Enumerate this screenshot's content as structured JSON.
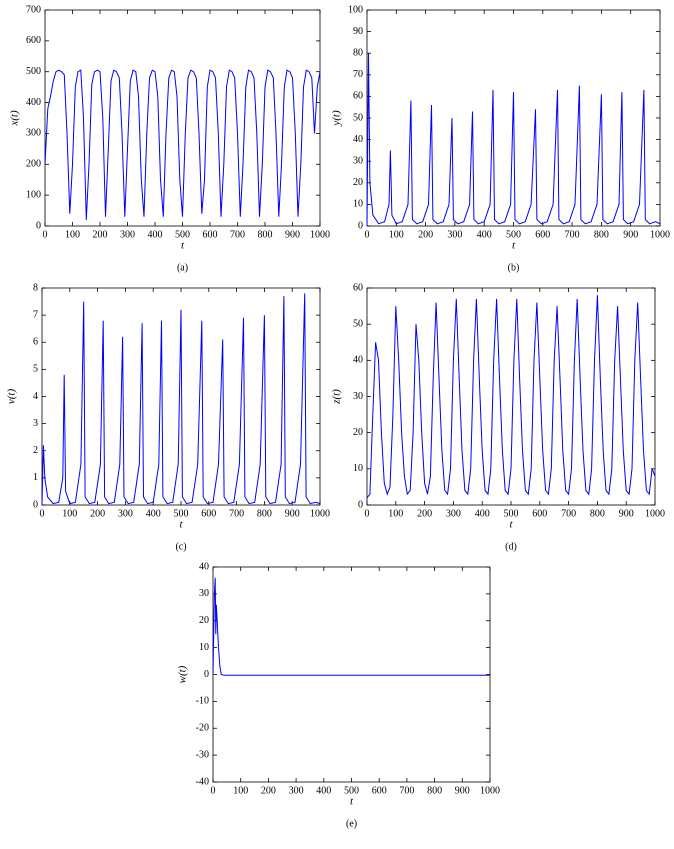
{
  "chart_data": [
    {
      "type": "line",
      "caption": "(a)",
      "x_label": "t",
      "y_label": "x(t)",
      "color": "#0000ff",
      "xlim": [
        0,
        1000
      ],
      "xticks": [
        0,
        100,
        200,
        300,
        400,
        500,
        600,
        700,
        800,
        900,
        1000
      ],
      "ylim": [
        0,
        700
      ],
      "yticks": [
        0,
        100,
        200,
        300,
        400,
        500,
        600,
        700
      ],
      "x": [
        0,
        10,
        20,
        30,
        40,
        50,
        60,
        70,
        80,
        90,
        100,
        110,
        120,
        130,
        140,
        150,
        160,
        170,
        180,
        190,
        200,
        210,
        220,
        230,
        240,
        250,
        260,
        270,
        280,
        290,
        300,
        310,
        320,
        330,
        340,
        350,
        360,
        370,
        380,
        390,
        400,
        410,
        420,
        430,
        440,
        450,
        460,
        470,
        480,
        490,
        500,
        510,
        520,
        530,
        540,
        550,
        560,
        570,
        580,
        590,
        600,
        610,
        620,
        630,
        640,
        650,
        660,
        670,
        680,
        690,
        700,
        710,
        720,
        730,
        740,
        750,
        760,
        770,
        780,
        790,
        800,
        810,
        820,
        830,
        840,
        850,
        860,
        870,
        880,
        890,
        900,
        910,
        920,
        930,
        940,
        950,
        960,
        970,
        980,
        990,
        1000
      ],
      "values": [
        200,
        380,
        420,
        470,
        500,
        505,
        500,
        490,
        300,
        40,
        200,
        450,
        500,
        505,
        350,
        20,
        200,
        460,
        500,
        505,
        500,
        350,
        30,
        250,
        470,
        505,
        500,
        480,
        300,
        30,
        250,
        470,
        505,
        500,
        420,
        150,
        30,
        300,
        480,
        505,
        500,
        420,
        150,
        30,
        300,
        480,
        505,
        500,
        420,
        150,
        30,
        300,
        480,
        505,
        500,
        480,
        300,
        40,
        150,
        450,
        505,
        500,
        480,
        300,
        30,
        200,
        450,
        505,
        500,
        480,
        300,
        30,
        200,
        450,
        505,
        500,
        480,
        300,
        30,
        200,
        450,
        505,
        500,
        480,
        300,
        30,
        200,
        450,
        505,
        500,
        480,
        300,
        30,
        200,
        450,
        505,
        500,
        480,
        300,
        450,
        500
      ]
    },
    {
      "type": "line",
      "caption": "(b)",
      "x_label": "t",
      "y_label": "y(t)",
      "color": "#0000ff",
      "xlim": [
        0,
        1000
      ],
      "xticks": [
        0,
        100,
        200,
        300,
        400,
        500,
        600,
        700,
        800,
        900,
        1000
      ],
      "ylim": [
        0,
        100
      ],
      "yticks": [
        0,
        10,
        20,
        30,
        40,
        50,
        60,
        70,
        80,
        90,
        100
      ],
      "x": [
        0,
        5,
        10,
        20,
        40,
        60,
        75,
        80,
        85,
        100,
        120,
        140,
        150,
        155,
        170,
        190,
        210,
        220,
        225,
        240,
        260,
        280,
        290,
        295,
        310,
        330,
        350,
        360,
        365,
        380,
        400,
        420,
        430,
        435,
        450,
        470,
        490,
        500,
        505,
        520,
        540,
        560,
        575,
        580,
        595,
        615,
        635,
        650,
        655,
        670,
        690,
        710,
        725,
        730,
        745,
        765,
        785,
        800,
        805,
        820,
        840,
        860,
        870,
        875,
        890,
        910,
        930,
        945,
        950,
        965,
        985,
        1000
      ],
      "values": [
        0,
        80,
        20,
        5,
        1,
        2,
        10,
        35,
        5,
        1,
        2,
        10,
        58,
        3,
        1,
        2,
        10,
        56,
        3,
        1,
        2,
        10,
        50,
        3,
        1,
        2,
        10,
        53,
        3,
        1,
        2,
        10,
        63,
        3,
        1,
        2,
        10,
        62,
        3,
        1,
        2,
        10,
        54,
        3,
        1,
        2,
        10,
        63,
        3,
        1,
        2,
        10,
        65,
        3,
        1,
        2,
        10,
        61,
        3,
        1,
        2,
        10,
        62,
        3,
        1,
        2,
        10,
        63,
        3,
        1,
        2,
        1
      ]
    },
    {
      "type": "line",
      "caption": "(c)",
      "x_label": "t",
      "y_label": "v(t)",
      "color": "#0000ff",
      "xlim": [
        0,
        1000
      ],
      "xticks": [
        0,
        100,
        200,
        300,
        400,
        500,
        600,
        700,
        800,
        900,
        1000
      ],
      "ylim": [
        0,
        8
      ],
      "yticks": [
        0,
        1,
        2,
        3,
        4,
        5,
        6,
        7,
        8
      ],
      "x": [
        0,
        5,
        10,
        20,
        40,
        60,
        75,
        80,
        85,
        100,
        120,
        140,
        150,
        155,
        170,
        190,
        210,
        220,
        225,
        240,
        260,
        280,
        290,
        295,
        310,
        330,
        350,
        360,
        365,
        380,
        400,
        420,
        430,
        435,
        450,
        470,
        490,
        500,
        505,
        520,
        540,
        560,
        575,
        580,
        595,
        615,
        635,
        650,
        655,
        670,
        690,
        710,
        725,
        730,
        745,
        765,
        785,
        800,
        805,
        820,
        840,
        860,
        870,
        875,
        890,
        910,
        930,
        945,
        950,
        965,
        985,
        1000
      ],
      "values": [
        0,
        2.2,
        1,
        0.3,
        0.05,
        0.1,
        1,
        4.8,
        0.5,
        0.05,
        0.1,
        1.5,
        7.5,
        0.3,
        0.05,
        0.1,
        1.5,
        6.8,
        0.3,
        0.05,
        0.1,
        1.5,
        6.2,
        0.3,
        0.05,
        0.1,
        1.5,
        6.7,
        0.3,
        0.05,
        0.1,
        1.5,
        6.8,
        0.3,
        0.05,
        0.1,
        1.5,
        7.2,
        0.3,
        0.05,
        0.1,
        1.5,
        6.8,
        0.3,
        0.05,
        0.1,
        1.5,
        6.1,
        0.3,
        0.05,
        0.1,
        1.5,
        6.9,
        0.3,
        0.05,
        0.1,
        1.5,
        7,
        0.3,
        0.05,
        0.1,
        1.5,
        7.7,
        0.3,
        0.05,
        0.1,
        1.5,
        7.8,
        0.3,
        0.05,
        0.1,
        0.05
      ]
    },
    {
      "type": "line",
      "caption": "(d)",
      "x_label": "t",
      "y_label": "z(t)",
      "color": "#0000ff",
      "xlim": [
        0,
        1000
      ],
      "xticks": [
        0,
        100,
        200,
        300,
        400,
        500,
        600,
        700,
        800,
        900,
        1000
      ],
      "ylim": [
        0,
        60
      ],
      "yticks": [
        0,
        10,
        20,
        30,
        40,
        50,
        60
      ],
      "x": [
        0,
        10,
        20,
        30,
        40,
        50,
        60,
        70,
        80,
        90,
        100,
        110,
        120,
        130,
        140,
        150,
        160,
        170,
        180,
        190,
        200,
        210,
        220,
        230,
        240,
        250,
        260,
        270,
        280,
        290,
        300,
        310,
        320,
        330,
        340,
        350,
        360,
        370,
        380,
        390,
        400,
        410,
        420,
        430,
        440,
        450,
        460,
        470,
        480,
        490,
        500,
        510,
        520,
        530,
        540,
        550,
        560,
        570,
        580,
        590,
        600,
        610,
        620,
        630,
        640,
        650,
        660,
        670,
        680,
        690,
        700,
        710,
        720,
        730,
        740,
        750,
        760,
        770,
        780,
        790,
        800,
        810,
        820,
        830,
        840,
        850,
        860,
        870,
        880,
        890,
        900,
        910,
        920,
        930,
        940,
        950,
        960,
        970,
        980,
        990,
        1000
      ],
      "values": [
        2,
        3,
        25,
        45,
        40,
        20,
        6,
        3,
        5,
        25,
        55,
        40,
        20,
        8,
        3,
        4,
        20,
        50,
        40,
        20,
        6,
        3,
        8,
        35,
        56,
        35,
        15,
        4,
        3,
        10,
        40,
        57,
        35,
        15,
        4,
        3,
        10,
        40,
        57,
        35,
        15,
        4,
        3,
        10,
        40,
        57,
        35,
        15,
        4,
        3,
        10,
        40,
        57,
        35,
        15,
        4,
        3,
        10,
        40,
        56,
        35,
        15,
        4,
        3,
        10,
        40,
        55,
        35,
        15,
        4,
        3,
        10,
        40,
        57,
        35,
        15,
        4,
        3,
        10,
        40,
        58,
        35,
        15,
        4,
        3,
        10,
        40,
        55,
        35,
        15,
        4,
        3,
        10,
        40,
        56,
        35,
        15,
        4,
        3,
        10,
        8
      ]
    },
    {
      "type": "line",
      "caption": "(e)",
      "x_label": "t",
      "y_label": "w(t)",
      "color": "#0000ff",
      "xlim": [
        0,
        1000
      ],
      "xticks": [
        0,
        100,
        200,
        300,
        400,
        500,
        600,
        700,
        800,
        900,
        1000
      ],
      "ylim": [
        -40,
        40
      ],
      "yticks": [
        -40,
        -30,
        -20,
        -10,
        0,
        10,
        20,
        30,
        40
      ],
      "x": [
        0,
        5,
        8,
        10,
        12,
        15,
        20,
        25,
        30,
        40,
        1000
      ],
      "values": [
        0,
        30,
        36,
        15,
        26,
        20,
        10,
        3,
        0,
        -0.3,
        -0.3
      ]
    }
  ]
}
